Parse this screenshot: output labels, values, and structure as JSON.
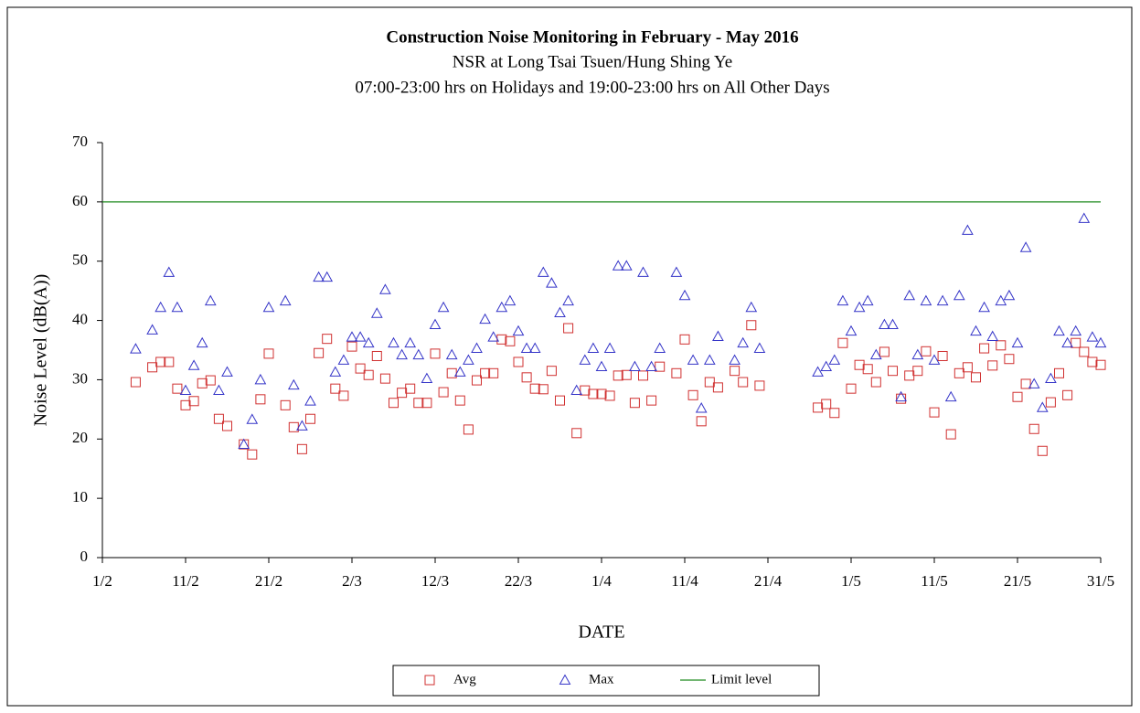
{
  "chart_data": {
    "type": "scatter",
    "title": "Construction Noise Monitoring in February - May 2016",
    "subtitle": [
      "NSR at Long Tsai Tsuen/Hung Shing Ye",
      "07:00-23:00 hrs on Holidays and 19:00-23:00 hrs on All Other Days"
    ],
    "x_label": "DATE",
    "y_label": "Noise Level (dB(A))",
    "xlim": [
      "2016-02-01",
      "2016-05-31"
    ],
    "xticks": [
      {
        "value": "2016-02-01",
        "label": "1/2"
      },
      {
        "value": "2016-02-11",
        "label": "11/2"
      },
      {
        "value": "2016-02-21",
        "label": "21/2"
      },
      {
        "value": "2016-03-02",
        "label": "2/3"
      },
      {
        "value": "2016-03-12",
        "label": "12/3"
      },
      {
        "value": "2016-03-22",
        "label": "22/3"
      },
      {
        "value": "2016-04-01",
        "label": "1/4"
      },
      {
        "value": "2016-04-11",
        "label": "11/4"
      },
      {
        "value": "2016-04-21",
        "label": "21/4"
      },
      {
        "value": "2016-05-01",
        "label": "1/5"
      },
      {
        "value": "2016-05-11",
        "label": "11/5"
      },
      {
        "value": "2016-05-21",
        "label": "21/5"
      },
      {
        "value": "2016-05-31",
        "label": "31/5"
      }
    ],
    "ylim": [
      0,
      70
    ],
    "yticks": [
      0,
      10,
      20,
      30,
      40,
      50,
      60,
      70
    ],
    "x": [
      "2016-02-05",
      "2016-02-07",
      "2016-02-08",
      "2016-02-09",
      "2016-02-10",
      "2016-02-11",
      "2016-02-12",
      "2016-02-13",
      "2016-02-14",
      "2016-02-15",
      "2016-02-16",
      "2016-02-18",
      "2016-02-19",
      "2016-02-20",
      "2016-02-21",
      "2016-02-23",
      "2016-02-24",
      "2016-02-25",
      "2016-02-26",
      "2016-02-27",
      "2016-02-28",
      "2016-02-29",
      "2016-03-01",
      "2016-03-02",
      "2016-03-03",
      "2016-03-04",
      "2016-03-05",
      "2016-03-06",
      "2016-03-07",
      "2016-03-08",
      "2016-03-09",
      "2016-03-10",
      "2016-03-11",
      "2016-03-12",
      "2016-03-13",
      "2016-03-14",
      "2016-03-15",
      "2016-03-16",
      "2016-03-17",
      "2016-03-18",
      "2016-03-19",
      "2016-03-20",
      "2016-03-21",
      "2016-03-22",
      "2016-03-23",
      "2016-03-24",
      "2016-03-25",
      "2016-03-26",
      "2016-03-27",
      "2016-03-28",
      "2016-03-29",
      "2016-03-30",
      "2016-03-31",
      "2016-04-01",
      "2016-04-02",
      "2016-04-03",
      "2016-04-04",
      "2016-04-05",
      "2016-04-06",
      "2016-04-07",
      "2016-04-08",
      "2016-04-10",
      "2016-04-11",
      "2016-04-12",
      "2016-04-13",
      "2016-04-14",
      "2016-04-15",
      "2016-04-17",
      "2016-04-18",
      "2016-04-19",
      "2016-04-20",
      "2016-04-27",
      "2016-04-28",
      "2016-04-29",
      "2016-04-30",
      "2016-05-01",
      "2016-05-02",
      "2016-05-03",
      "2016-05-04",
      "2016-05-05",
      "2016-05-06",
      "2016-05-07",
      "2016-05-08",
      "2016-05-09",
      "2016-05-10",
      "2016-05-11",
      "2016-05-12",
      "2016-05-13",
      "2016-05-14",
      "2016-05-15",
      "2016-05-16",
      "2016-05-17",
      "2016-05-18",
      "2016-05-19",
      "2016-05-20",
      "2016-05-21",
      "2016-05-22",
      "2016-05-23",
      "2016-05-24",
      "2016-05-25",
      "2016-05-26",
      "2016-05-27",
      "2016-05-28",
      "2016-05-29",
      "2016-05-30",
      "2016-05-31"
    ],
    "series": [
      {
        "name": "Avg",
        "color": "#d03030",
        "marker": "square",
        "values": [
          29.6,
          32.1,
          33,
          33,
          28.5,
          25.7,
          26.4,
          29.4,
          29.9,
          23.4,
          22.2,
          19.1,
          17.4,
          26.7,
          34.4,
          25.7,
          22,
          18.3,
          23.4,
          34.5,
          36.9,
          28.5,
          27.3,
          35.6,
          31.9,
          30.8,
          34,
          30.2,
          26.1,
          27.8,
          28.5,
          26.1,
          26.1,
          34.4,
          27.9,
          31.1,
          26.5,
          21.6,
          29.9,
          31.1,
          31.1,
          36.8,
          36.5,
          33,
          30.4,
          28.5,
          28.4,
          31.5,
          26.5,
          38.7,
          21,
          28.2,
          27.6,
          27.6,
          27.3,
          30.7,
          30.8,
          26.1,
          30.7,
          26.5,
          32.2,
          31.1,
          36.8,
          27.4,
          23,
          29.6,
          28.7,
          31.5,
          29.6,
          39.2,
          29,
          25.3,
          25.9,
          24.4,
          36.2,
          28.5,
          32.5,
          31.8,
          29.6,
          34.7,
          31.5,
          26.8,
          30.7,
          31.5,
          34.8,
          24.5,
          34,
          20.8,
          31.1,
          32.1,
          30.4,
          35.3,
          32.4,
          35.8,
          33.5,
          27.1,
          29.3,
          21.7,
          18,
          26.2,
          31.1,
          27.4,
          36.2,
          34.7,
          33,
          32.5
        ]
      },
      {
        "name": "Max",
        "color": "#3535c8",
        "marker": "triangle",
        "values": [
          35.2,
          38.4,
          42.2,
          48.1,
          42.2,
          28.2,
          32.4,
          36.2,
          43.3,
          28.2,
          31.3,
          19.1,
          23.3,
          30,
          42.2,
          43.3,
          29.1,
          22.2,
          26.4,
          47.3,
          47.3,
          31.3,
          33.3,
          37.2,
          37.2,
          36.2,
          41.2,
          45.2,
          36.2,
          34.2,
          36.2,
          34.2,
          30.2,
          39.3,
          42.2,
          34.2,
          31.3,
          33.3,
          35.3,
          40.2,
          37.2,
          42.2,
          43.3,
          38.2,
          35.3,
          35.3,
          48.1,
          46.3,
          41.3,
          43.3,
          28.2,
          33.3,
          35.3,
          32.2,
          35.3,
          49.2,
          49.2,
          32.2,
          48.1,
          32.2,
          35.3,
          48.1,
          44.2,
          33.3,
          25.2,
          33.3,
          37.3,
          33.3,
          36.2,
          42.2,
          35.3,
          31.3,
          32.2,
          33.3,
          43.3,
          38.2,
          42.2,
          43.3,
          34.2,
          39.3,
          39.3,
          27.1,
          44.2,
          34.2,
          43.3,
          33.3,
          43.3,
          27.1,
          44.2,
          55.2,
          38.2,
          42.2,
          37.3,
          43.3,
          44.2,
          36.2,
          52.3,
          29.3,
          25.3,
          30.2,
          38.2,
          36.2,
          38.2,
          57.2,
          37.2,
          36.2
        ]
      }
    ],
    "reference_lines": [
      {
        "name": "Limit level",
        "color": "#1f8a1f",
        "value": 60
      }
    ],
    "grid": false
  }
}
